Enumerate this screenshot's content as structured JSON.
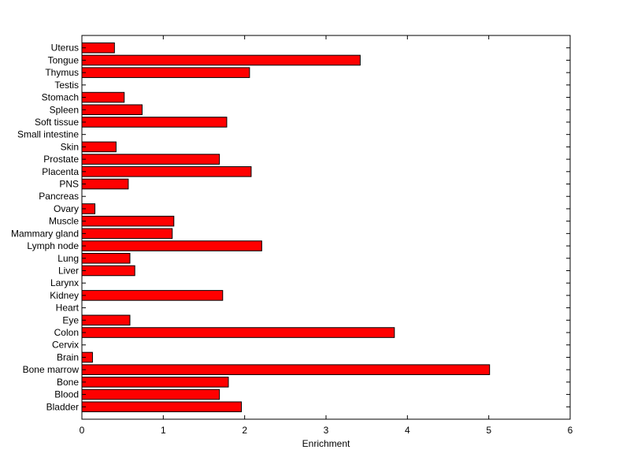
{
  "chart_data": {
    "type": "bar",
    "orientation": "horizontal",
    "title": "",
    "xlabel": "Enrichment",
    "ylabel": "",
    "xlim": [
      0,
      6
    ],
    "xticks": [
      "0",
      "1",
      "2",
      "3",
      "4",
      "5",
      "6"
    ],
    "grid": false,
    "legend": "none",
    "bar_color": "#ff0000",
    "bar_edge_color": "#000000",
    "categories": [
      "Bladder",
      "Blood",
      "Bone",
      "Bone marrow",
      "Brain",
      "Cervix",
      "Colon",
      "Eye",
      "Heart",
      "Kidney",
      "Larynx",
      "Liver",
      "Lung",
      "Lymph node",
      "Mammary gland",
      "Muscle",
      "Ovary",
      "Pancreas",
      "PNS",
      "Placenta",
      "Prostate",
      "Skin",
      "Small intestine",
      "Soft tissue",
      "Spleen",
      "Stomach",
      "Testis",
      "Thymus",
      "Tongue",
      "Uterus"
    ],
    "values": [
      1.96,
      1.69,
      1.8,
      5.01,
      0.13,
      0,
      3.84,
      0.59,
      0,
      1.73,
      0,
      0.65,
      0.59,
      2.21,
      1.11,
      1.13,
      0.16,
      0,
      0.57,
      2.08,
      1.69,
      0.42,
      0,
      1.78,
      0.74,
      0.52,
      0,
      2.06,
      3.42,
      0.4
    ]
  }
}
